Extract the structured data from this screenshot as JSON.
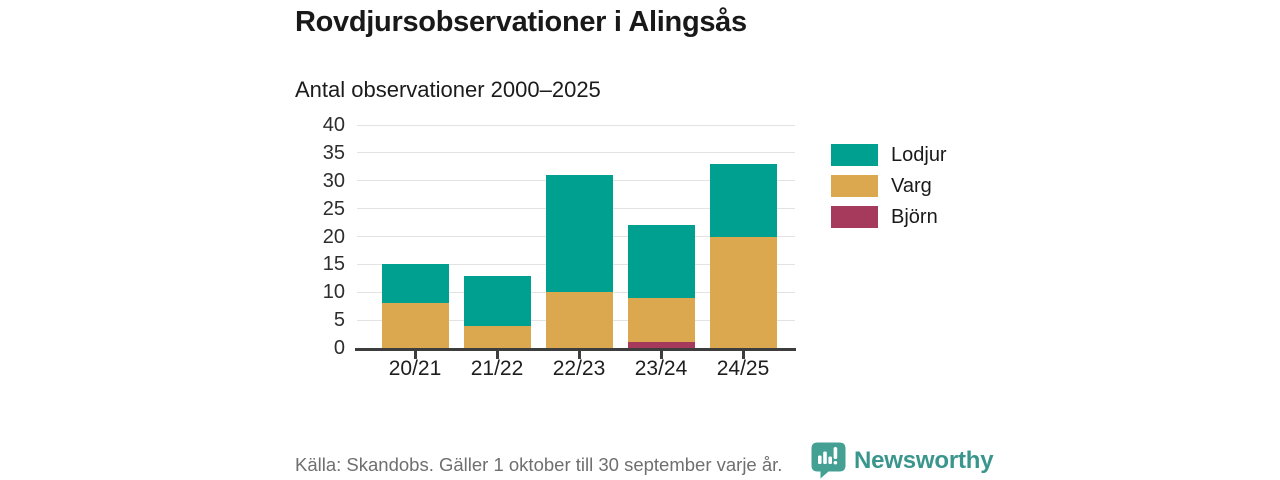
{
  "title": "Rovdjursobservationer i Alingsås",
  "subtitle": "Antal observationer 2000–2025",
  "footer": {
    "source": "Källa: Skandobs. Gäller 1 oktober till 30 september varje år.",
    "brand": "Newsworthy"
  },
  "colors": {
    "lodjur_teal": "#00A091",
    "varg_gold": "#DBA84F",
    "bjorn_maroon": "#A53A5D",
    "brand_text_teal": "#3A968D",
    "logo_teal": "#44A093",
    "gridline": "#E3E3E3",
    "axis": "#3D3D3D",
    "text_dark": "#1A1A1A",
    "text_muted": "#6F6F6F",
    "background": "#FFFFFF"
  },
  "chart_data": {
    "type": "bar",
    "stacked": true,
    "title": "Rovdjursobservationer i Alingsås",
    "subtitle": "Antal observationer 2000–2025",
    "categories": [
      "20/21",
      "21/22",
      "22/23",
      "23/24",
      "24/25"
    ],
    "series": [
      {
        "name": "Lodjur",
        "color": "#00A091",
        "values": [
          7,
          9,
          21,
          13,
          13
        ]
      },
      {
        "name": "Varg",
        "color": "#DBA84F",
        "values": [
          8,
          4,
          10,
          8,
          20
        ]
      },
      {
        "name": "Björn",
        "color": "#A53A5D",
        "values": [
          0,
          0,
          0,
          1,
          0
        ]
      }
    ],
    "stack_bottom_to_top": [
      "Björn",
      "Varg",
      "Lodjur"
    ],
    "stack_totals": [
      15,
      13,
      31,
      22,
      33
    ],
    "xlabel": "",
    "ylabel": "",
    "ylim": [
      0,
      40
    ],
    "yticks": [
      0,
      5,
      10,
      15,
      20,
      25,
      30,
      35,
      40
    ],
    "grid": "horizontal",
    "legend_position": "right",
    "legend": [
      "Lodjur",
      "Varg",
      "Björn"
    ]
  }
}
